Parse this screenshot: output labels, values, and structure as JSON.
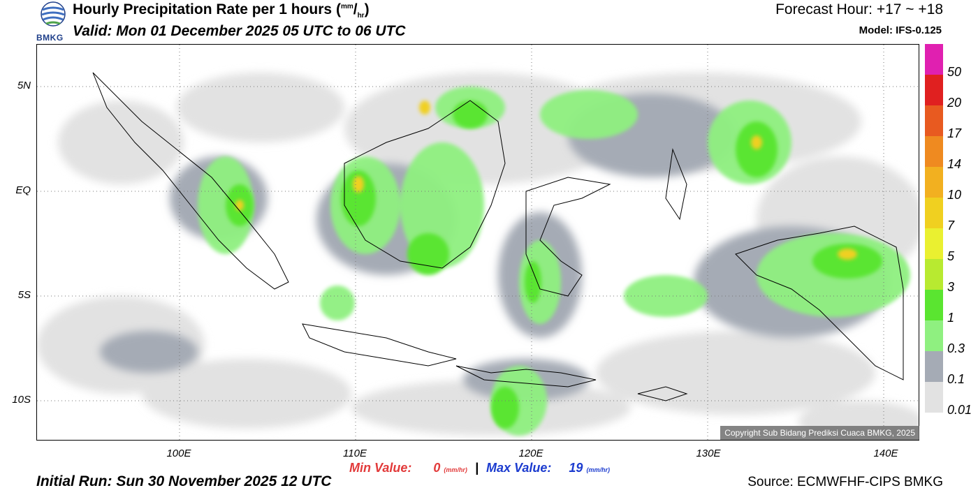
{
  "header": {
    "title": "Hourly Precipitation Rate per 1 hours",
    "units_num": "mm",
    "units_den": "hr",
    "valid": "Valid: Mon 01 December 2025 05 UTC to 06 UTC",
    "forecast_hour": "Forecast Hour: +17 ~ +18",
    "model": "Model: IFS-0.125",
    "logo_text": "BMKG"
  },
  "map": {
    "lat_labels": [
      "5N",
      "EQ",
      "5S",
      "10S"
    ],
    "lon_labels": [
      "100E",
      "110E",
      "120E",
      "130E",
      "140E"
    ],
    "copyright": "Copyright Sub Bidang Prediksi Cuaca BMKG, 2025"
  },
  "legend": {
    "labels": [
      "50",
      "20",
      "17",
      "14",
      "10",
      "7",
      "5",
      "3",
      "1",
      "0.3",
      "0.1",
      "0.01"
    ],
    "colors": [
      "#e020b0",
      "#e02020",
      "#e85a20",
      "#ef8a20",
      "#f2b020",
      "#f0d020",
      "#eaf030",
      "#b8ea30",
      "#5ae530",
      "#8ff080",
      "#a5abb5",
      "#e2e2e2"
    ]
  },
  "footer": {
    "min_label": "Min Value:",
    "min_value": "0",
    "separator": "|",
    "max_label": "Max Value:",
    "max_value": "19",
    "unit_num": "mm",
    "unit_den": "hr",
    "initial_run": "Initial Run: Sun 30 November 2025 12 UTC",
    "source": "Source: ECMWFHF-CIPS BMKG"
  }
}
